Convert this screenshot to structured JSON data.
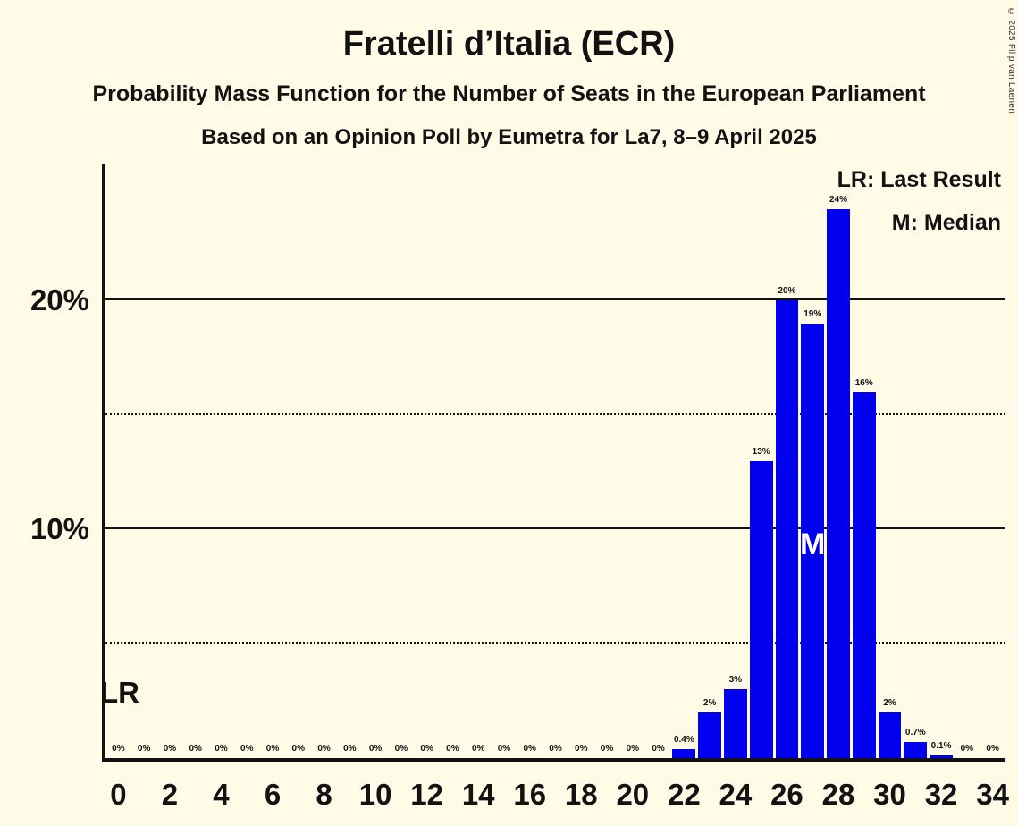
{
  "copyright": "© 2025 Filip van Laenen",
  "legend": {
    "lr_label": "LR: Last Result",
    "m_label": "M: Median"
  },
  "annotations": {
    "last_result_label": "LR",
    "median_label": "M"
  },
  "chart_data": {
    "type": "bar",
    "title": "Fratelli d’Italia (ECR)",
    "subtitle": "Probability Mass Function for the Number of Seats in the European Parliament",
    "subtitle2": "Based on an Opinion Poll by Eumetra for La7, 8–9 April 2025",
    "x": [
      0,
      1,
      2,
      3,
      4,
      5,
      6,
      7,
      8,
      9,
      10,
      11,
      12,
      13,
      14,
      15,
      16,
      17,
      18,
      19,
      20,
      21,
      22,
      23,
      24,
      25,
      26,
      27,
      28,
      29,
      30,
      31,
      32,
      33,
      34
    ],
    "values": [
      0,
      0,
      0,
      0,
      0,
      0,
      0,
      0,
      0,
      0,
      0,
      0,
      0,
      0,
      0,
      0,
      0,
      0,
      0,
      0,
      0,
      0,
      0.4,
      2,
      3,
      13,
      20,
      19,
      24,
      16,
      2,
      0.7,
      0.1,
      0,
      0
    ],
    "bar_labels": [
      "0%",
      "0%",
      "0%",
      "0%",
      "0%",
      "0%",
      "0%",
      "0%",
      "0%",
      "0%",
      "0%",
      "0%",
      "0%",
      "0%",
      "0%",
      "0%",
      "0%",
      "0%",
      "0%",
      "0%",
      "0%",
      "0%",
      "0.4%",
      "2%",
      "3%",
      "13%",
      "20%",
      "19%",
      "24%",
      "16%",
      "2%",
      "0.7%",
      "0.1%",
      "0%",
      "0%"
    ],
    "x_tick_labels": [
      0,
      2,
      4,
      6,
      8,
      10,
      12,
      14,
      16,
      18,
      20,
      22,
      24,
      26,
      28,
      30,
      32,
      34
    ],
    "ylim": [
      0,
      26
    ],
    "gridlines": [
      {
        "value": 5,
        "style": "dotted",
        "label": ""
      },
      {
        "value": 10,
        "style": "solid",
        "label": "10%"
      },
      {
        "value": 15,
        "style": "dotted",
        "label": ""
      },
      {
        "value": 20,
        "style": "solid",
        "label": "20%"
      }
    ],
    "median_seat": 27,
    "legend_position": "top-right",
    "grid": "horizontal-only",
    "colors": {
      "background": "#FFFBE6",
      "bar": "#0000EE",
      "text": "#121212"
    }
  }
}
